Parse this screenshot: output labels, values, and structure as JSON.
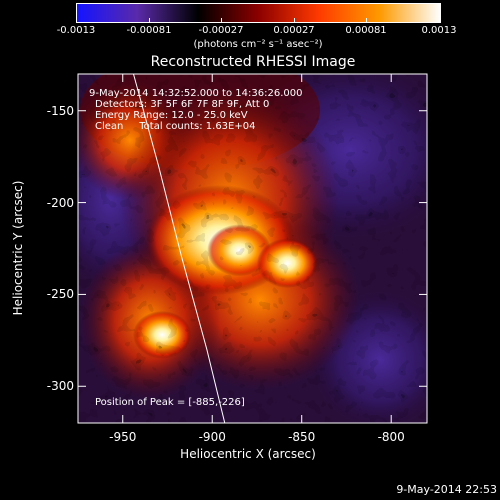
{
  "colorbar": {
    "tick_labels": [
      "-0.0013",
      "-0.00081",
      "-0.00027",
      "0.00027",
      "0.00081",
      "0.0013"
    ],
    "unit_label": "(photons cm⁻² s⁻¹ asec⁻²)",
    "colormap_stops": [
      "#1414ff",
      "#5a2aa8",
      "#000000",
      "#8c0000",
      "#ff3a00",
      "#ff9a00",
      "#ffffff"
    ]
  },
  "plot": {
    "title": "Reconstructed RHESSI Image",
    "info_lines": [
      "9-May-2014 14:32:52.000 to 14:36:26.000",
      "Detectors: 3F 5F 6F 7F 8F 9F, Att 0",
      "Energy Range: 12.0 - 25.0 keV",
      "Clean     Total counts: 1.63E+04"
    ],
    "peak_label": "Position of Peak =",
    "peak_value": "-885,-226",
    "xlabel": "Heliocentric X (arcsec)",
    "ylabel": "Heliocentric Y (arcsec)",
    "x_ticks": [
      "-950",
      "-900",
      "-850",
      "-800"
    ],
    "y_ticks": [
      "-150",
      "-200",
      "-250",
      "-300"
    ],
    "x_range": [
      -975,
      -780
    ],
    "y_range": [
      -320,
      -130
    ],
    "peak": [
      -885,
      -226
    ],
    "limb_curve": [
      [
        -944,
        -130
      ],
      [
        -930,
        -180
      ],
      [
        -917,
        -230
      ],
      [
        -903,
        -280
      ],
      [
        -893,
        -320
      ]
    ],
    "sources": [
      {
        "x": -885,
        "y": -226,
        "intensity": 1.0
      },
      {
        "x": -858,
        "y": -233,
        "intensity": 0.9
      },
      {
        "x": -928,
        "y": -272,
        "intensity": 0.82
      }
    ]
  },
  "footer": {
    "timestamp": "9-May-2014 22:53"
  }
}
